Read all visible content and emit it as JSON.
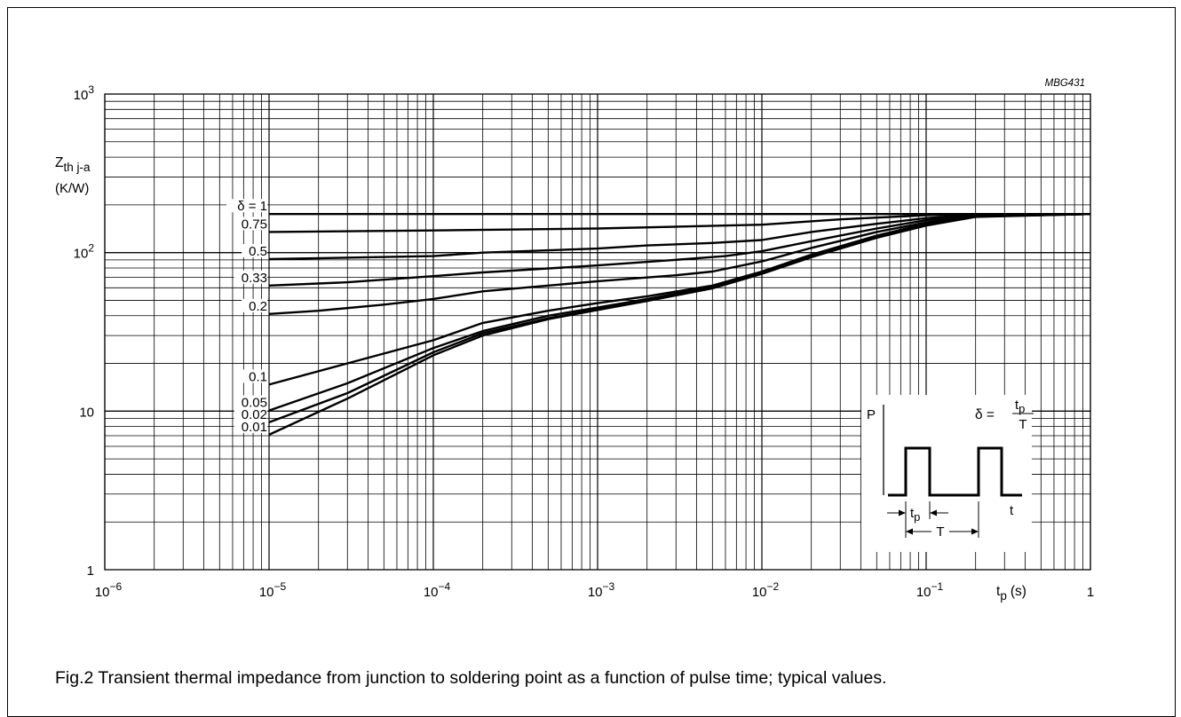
{
  "figure_code": "MBG431",
  "caption": "Fig.2  Transient thermal impedance from junction to soldering point as a function of pulse time; typical values.",
  "y_label": {
    "symbol": "Z",
    "subscript": "th j-a",
    "unit": "(K/W)"
  },
  "x_label": {
    "symbol": "t",
    "subscript": "p",
    "unit": "(s)"
  },
  "x_ticks": [
    {
      "base": "10",
      "exp": "−6",
      "value": 1e-06
    },
    {
      "base": "10",
      "exp": "−5",
      "value": 1e-05
    },
    {
      "base": "10",
      "exp": "−4",
      "value": 0.0001
    },
    {
      "base": "10",
      "exp": "−3",
      "value": 0.001
    },
    {
      "base": "10",
      "exp": "−2",
      "value": 0.01
    },
    {
      "base": "10",
      "exp": "−1",
      "value": 0.1
    },
    {
      "base": "1",
      "exp": "",
      "value": 1
    }
  ],
  "y_ticks": [
    {
      "base": "1",
      "exp": "",
      "value": 1
    },
    {
      "base": "10",
      "exp": "",
      "value": 10
    },
    {
      "base": "10",
      "exp": "2",
      "value": 100
    },
    {
      "base": "10",
      "exp": "3",
      "value": 1000
    }
  ],
  "inset": {
    "p_label": "P",
    "t_label": "t",
    "tp_label": {
      "symbol": "t",
      "subscript": "p"
    },
    "T_label": "T",
    "formula": {
      "lhs": "δ =",
      "num_symbol": "t",
      "num_subscript": "p",
      "den": "T"
    }
  },
  "chart_data": {
    "type": "line",
    "x_scale": "log",
    "y_scale": "log",
    "xlim": [
      1e-06,
      1
    ],
    "ylim": [
      1,
      1000
    ],
    "grid": true,
    "xlabel": "tp (s)",
    "ylabel": "Zth j-a (K/W)",
    "series": [
      {
        "name": "δ = 1",
        "label": "δ = 1",
        "points": [
          [
            1e-05,
            175
          ],
          [
            1,
            175
          ]
        ]
      },
      {
        "name": "0.75",
        "label": "0.75",
        "points": [
          [
            1e-05,
            135
          ],
          [
            0.0001,
            138
          ],
          [
            0.001,
            142
          ],
          [
            0.01,
            150
          ],
          [
            0.03,
            162
          ],
          [
            0.1,
            172
          ],
          [
            0.2,
            175
          ],
          [
            1,
            175
          ]
        ]
      },
      {
        "name": "0.5",
        "label": "0.5",
        "points": [
          [
            1e-05,
            91
          ],
          [
            0.0001,
            95
          ],
          [
            0.0002,
            100
          ],
          [
            0.001,
            106
          ],
          [
            0.002,
            111
          ],
          [
            0.005,
            115
          ],
          [
            0.01,
            120
          ],
          [
            0.02,
            135
          ],
          [
            0.05,
            152
          ],
          [
            0.1,
            165
          ],
          [
            0.2,
            174
          ],
          [
            1,
            175
          ]
        ]
      },
      {
        "name": "0.33",
        "label": "0.33",
        "points": [
          [
            1e-05,
            62
          ],
          [
            3e-05,
            65
          ],
          [
            0.0001,
            71
          ],
          [
            0.0002,
            75
          ],
          [
            0.001,
            83
          ],
          [
            0.003,
            90
          ],
          [
            0.006,
            95
          ],
          [
            0.01,
            102
          ],
          [
            0.02,
            118
          ],
          [
            0.05,
            142
          ],
          [
            0.1,
            160
          ],
          [
            0.2,
            172
          ],
          [
            1,
            175
          ]
        ]
      },
      {
        "name": "0.2",
        "label": "0.2",
        "points": [
          [
            1e-05,
            41
          ],
          [
            2e-05,
            43
          ],
          [
            5e-05,
            47
          ],
          [
            0.0001,
            51
          ],
          [
            0.0002,
            57
          ],
          [
            0.001,
            66
          ],
          [
            0.003,
            72
          ],
          [
            0.005,
            76
          ],
          [
            0.01,
            88
          ],
          [
            0.02,
            107
          ],
          [
            0.05,
            135
          ],
          [
            0.1,
            155
          ],
          [
            0.2,
            170
          ],
          [
            1,
            175
          ]
        ]
      },
      {
        "name": "0.1",
        "label": "0.1",
        "points": [
          [
            1e-05,
            14.7
          ],
          [
            3e-05,
            20
          ],
          [
            0.0001,
            28
          ],
          [
            0.0002,
            36
          ],
          [
            0.0005,
            43
          ],
          [
            0.001,
            48
          ],
          [
            0.002,
            53
          ],
          [
            0.005,
            62
          ],
          [
            0.01,
            76
          ],
          [
            0.02,
            97
          ],
          [
            0.05,
            128
          ],
          [
            0.1,
            152
          ],
          [
            0.2,
            170
          ],
          [
            1,
            175
          ]
        ]
      },
      {
        "name": "0.05",
        "label": "0.05",
        "points": [
          [
            1e-05,
            10.1
          ],
          [
            3e-05,
            15
          ],
          [
            0.0001,
            25
          ],
          [
            0.0002,
            32
          ],
          [
            0.0005,
            40
          ],
          [
            0.001,
            45
          ],
          [
            0.002,
            51
          ],
          [
            0.005,
            61
          ],
          [
            0.01,
            75
          ],
          [
            0.02,
            95
          ],
          [
            0.05,
            126
          ],
          [
            0.1,
            150
          ],
          [
            0.2,
            169
          ],
          [
            1,
            175
          ]
        ]
      },
      {
        "name": "0.02",
        "label": "0.02",
        "points": [
          [
            1e-05,
            8.5
          ],
          [
            3e-05,
            13
          ],
          [
            0.0001,
            23.5
          ],
          [
            0.0002,
            31
          ],
          [
            0.0005,
            38.5
          ],
          [
            0.001,
            44
          ],
          [
            0.002,
            50
          ],
          [
            0.005,
            60
          ],
          [
            0.01,
            74
          ],
          [
            0.02,
            94
          ],
          [
            0.05,
            125
          ],
          [
            0.1,
            149
          ],
          [
            0.2,
            169
          ],
          [
            1,
            175
          ]
        ]
      },
      {
        "name": "0.01",
        "label": "0.01",
        "points": [
          [
            1e-05,
            7.1
          ],
          [
            3e-05,
            12
          ],
          [
            0.0001,
            22.5
          ],
          [
            0.0002,
            30
          ],
          [
            0.0005,
            38
          ],
          [
            0.001,
            43.5
          ],
          [
            0.002,
            49.5
          ],
          [
            0.005,
            59.5
          ],
          [
            0.01,
            73.5
          ],
          [
            0.02,
            93.5
          ],
          [
            0.05,
            124
          ],
          [
            0.1,
            148
          ],
          [
            0.2,
            168
          ],
          [
            1,
            175
          ]
        ]
      }
    ]
  }
}
